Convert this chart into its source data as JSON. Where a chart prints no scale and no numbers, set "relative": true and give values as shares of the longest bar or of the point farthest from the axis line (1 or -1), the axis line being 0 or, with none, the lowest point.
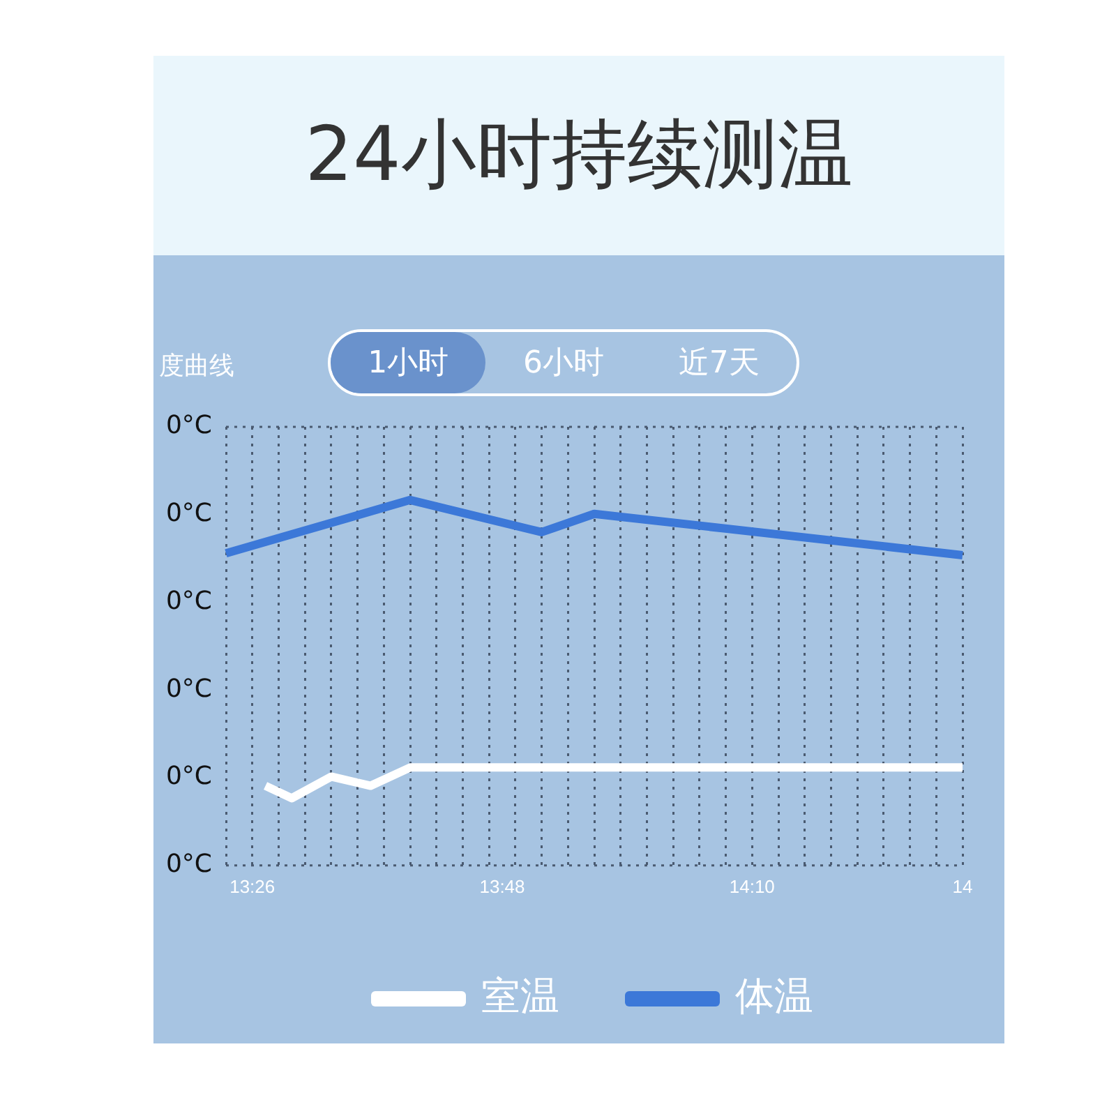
{
  "chart_data": {
    "type": "line",
    "title": "24小时持续测温",
    "subtitle": "度曲线",
    "annotations": [
      "1小时",
      "6小时",
      "近7天",
      "0°C",
      "0°C",
      "0°C",
      "0°C",
      "0°C",
      "0°C"
    ],
    "relative": true,
    "categories": [
      null,
      null,
      "13:26",
      null,
      null,
      null,
      null,
      null,
      null,
      null,
      null,
      null,
      null,
      null,
      null,
      null,
      null,
      null,
      null,
      null,
      null,
      "13:48",
      null,
      null,
      null,
      null,
      null,
      null,
      null,
      null,
      null,
      null,
      null,
      null,
      null,
      null,
      null,
      null,
      null,
      null,
      "14:10",
      null,
      null,
      null,
      null,
      null,
      null,
      null,
      null,
      null,
      null,
      null,
      null,
      null,
      null,
      null,
      "14"
    ],
    "series": [
      {
        "name": "室温",
        "color": "#ffffff",
        "values": [
          null,
          null,
          null,
          0.218,
          null,
          0.184,
          null,
          null,
          0.243,
          null,
          null,
          0.218,
          null,
          null,
          0.268,
          null,
          null,
          null,
          null,
          null,
          null,
          null,
          null,
          null,
          null,
          null,
          null,
          null,
          null,
          null,
          null,
          null,
          null,
          null,
          null,
          null,
          null,
          null,
          null,
          null,
          null,
          null,
          null,
          null,
          null,
          null,
          null,
          null,
          null,
          null,
          null,
          null,
          null,
          null,
          null,
          null,
          0.268
        ]
      },
      {
        "name": "体温",
        "color": "#3c78d8",
        "values": [
          0.854,
          null,
          null,
          null,
          null,
          null,
          null,
          null,
          null,
          null,
          null,
          null,
          null,
          null,
          1,
          null,
          null,
          null,
          null,
          null,
          null,
          null,
          null,
          null,
          0.912,
          null,
          null,
          null,
          0.962,
          null,
          null,
          null,
          null,
          null,
          null,
          null,
          null,
          null,
          null,
          null,
          null,
          null,
          null,
          null,
          null,
          null,
          null,
          null,
          null,
          null,
          null,
          null,
          null,
          null,
          null,
          null,
          0.849
        ]
      }
    ],
    "grid": "x",
    "legend": "bottom",
    "marker": "none",
    "line_style": "solid"
  }
}
